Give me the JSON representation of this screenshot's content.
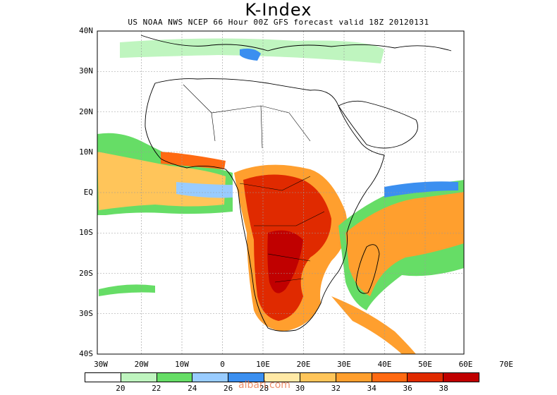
{
  "title": "K-Index",
  "subtitle": "US NOAA NWS NCEP 66 Hour 00Z GFS forecast valid 18Z 20120131",
  "lat_labels": [
    "40N",
    "30N",
    "20N",
    "10N",
    "EQ",
    "10S",
    "20S",
    "30S",
    "40S"
  ],
  "lon_labels": [
    "30W",
    "20W",
    "10W",
    "0",
    "10E",
    "20E",
    "30E",
    "40E",
    "50E",
    "60E",
    "70E"
  ],
  "colorbar": {
    "colors": [
      "#ffffff",
      "#bff5bf",
      "#66dd66",
      "#99ccff",
      "#3b8ff0",
      "#ffe9a6",
      "#ffc55a",
      "#ff9f2e",
      "#ff6a12",
      "#e02a00",
      "#c00000"
    ],
    "labels": [
      "20",
      "22",
      "24",
      "26",
      "28",
      "30",
      "32",
      "34",
      "36",
      "38"
    ]
  },
  "watermark": "albari.com"
}
